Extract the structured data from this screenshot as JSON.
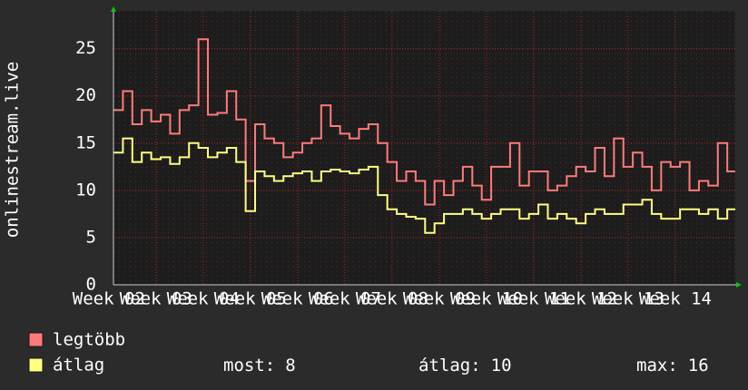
{
  "chart_data": {
    "type": "step",
    "ylabel": "onlinestream.live",
    "x": [
      2.1,
      2.3,
      2.5,
      2.7,
      2.9,
      3.1,
      3.3,
      3.5,
      3.7,
      3.9,
      4.1,
      4.3,
      4.5,
      4.7,
      4.9,
      5.1,
      5.3,
      5.5,
      5.7,
      5.9,
      6.1,
      6.3,
      6.5,
      6.7,
      6.9,
      7.1,
      7.3,
      7.5,
      7.7,
      7.9,
      8.1,
      8.3,
      8.5,
      8.7,
      8.9,
      9.1,
      9.3,
      9.5,
      9.7,
      9.9,
      10.1,
      10.3,
      10.5,
      10.7,
      10.9,
      11.1,
      11.3,
      11.5,
      11.7,
      11.9,
      12.1,
      12.3,
      12.5,
      12.7,
      12.9,
      13.1,
      13.3,
      13.5,
      13.7,
      13.9,
      14.1,
      14.3,
      14.5,
      14.7,
      14.9,
      15.1
    ],
    "series": [
      {
        "name": "legtöbb",
        "color": "#ff7b7b",
        "values": [
          18.5,
          20.5,
          17,
          18.5,
          17.3,
          18,
          16,
          18.5,
          19,
          26,
          18,
          18.2,
          20.5,
          17.5,
          11,
          17,
          15.5,
          15,
          13.5,
          14,
          15,
          15.5,
          19,
          16.8,
          16,
          15.5,
          16.5,
          17,
          15,
          13,
          11,
          12,
          11,
          8.5,
          11,
          9.5,
          11,
          12.5,
          10.5,
          9,
          12.5,
          12.5,
          15,
          10.5,
          12,
          12,
          10,
          10.5,
          11.5,
          12.5,
          12,
          14.5,
          11.5,
          15.5,
          12.5,
          14,
          12.5,
          10,
          13,
          12.5,
          13,
          10,
          11,
          10.5,
          15,
          12
        ]
      },
      {
        "name": "átlag",
        "color": "#ffff80",
        "values": [
          14,
          15.5,
          13,
          14,
          13.3,
          13.5,
          12.8,
          13.5,
          15,
          14.5,
          13.5,
          14,
          14.5,
          13,
          7.8,
          12,
          11.5,
          11,
          11.5,
          11.8,
          12,
          11,
          12,
          12.2,
          12,
          11.8,
          12.2,
          12.5,
          9.5,
          8,
          7.5,
          7.2,
          7,
          5.5,
          6.5,
          7.5,
          7.5,
          8,
          7.5,
          7,
          7.5,
          8,
          8,
          7,
          7.5,
          8.5,
          7,
          7.5,
          7,
          6.5,
          7.5,
          8,
          7.5,
          7.5,
          8.5,
          8.5,
          9,
          7.5,
          7,
          7,
          8,
          8,
          7.5,
          8,
          7,
          8
        ]
      }
    ],
    "xlim": [
      2.1,
      15.27
    ],
    "xticks": [
      {
        "value": 2,
        "label": "Week 02"
      },
      {
        "value": 3,
        "label": "Week 03"
      },
      {
        "value": 4,
        "label": "Week 04"
      },
      {
        "value": 5,
        "label": "Week 05"
      },
      {
        "value": 6,
        "label": "Week 06"
      },
      {
        "value": 7,
        "label": "Week 07"
      },
      {
        "value": 8,
        "label": "Week 08"
      },
      {
        "value": 9,
        "label": "Week 09"
      },
      {
        "value": 10,
        "label": "Week 10"
      },
      {
        "value": 11,
        "label": "Week 11"
      },
      {
        "value": 12,
        "label": "Week 12"
      },
      {
        "value": 13,
        "label": "Week 13"
      },
      {
        "value": 14,
        "label": "Week 14"
      }
    ],
    "ylim": [
      0,
      29
    ],
    "yticks": [
      0,
      5,
      10,
      15,
      20,
      25
    ],
    "grid": true,
    "stats": [
      {
        "label": "most:",
        "value": 8
      },
      {
        "label": "átlag:",
        "value": 10
      },
      {
        "label": "max:",
        "value": 16
      }
    ]
  }
}
